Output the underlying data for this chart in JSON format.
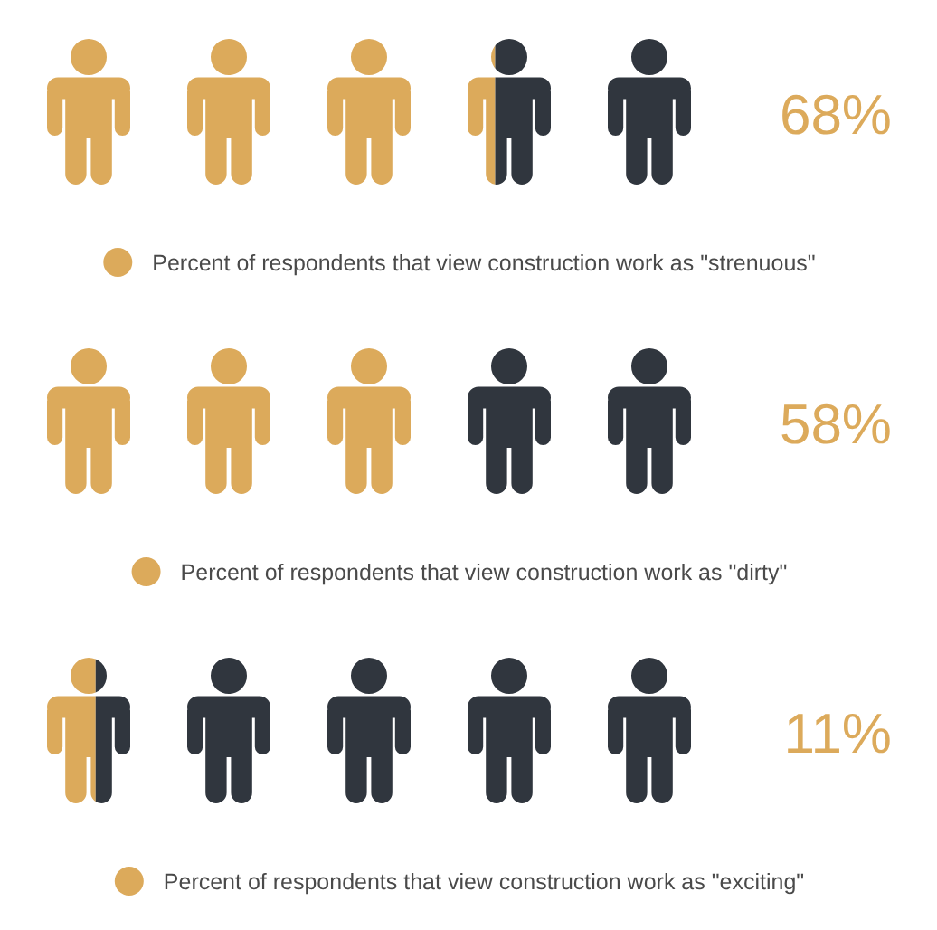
{
  "chart_data": {
    "type": "other",
    "categories": [
      "Percent of respondents that view construction work as \"strenuous\"",
      "Percent of respondents that view construction work as \"dirty\"",
      "Percent of respondents that view construction work as \"exciting\""
    ],
    "values": [
      68,
      58,
      11
    ],
    "value_labels": [
      "68%",
      "58%",
      "11%"
    ],
    "color": "#dcaa5b"
  }
}
